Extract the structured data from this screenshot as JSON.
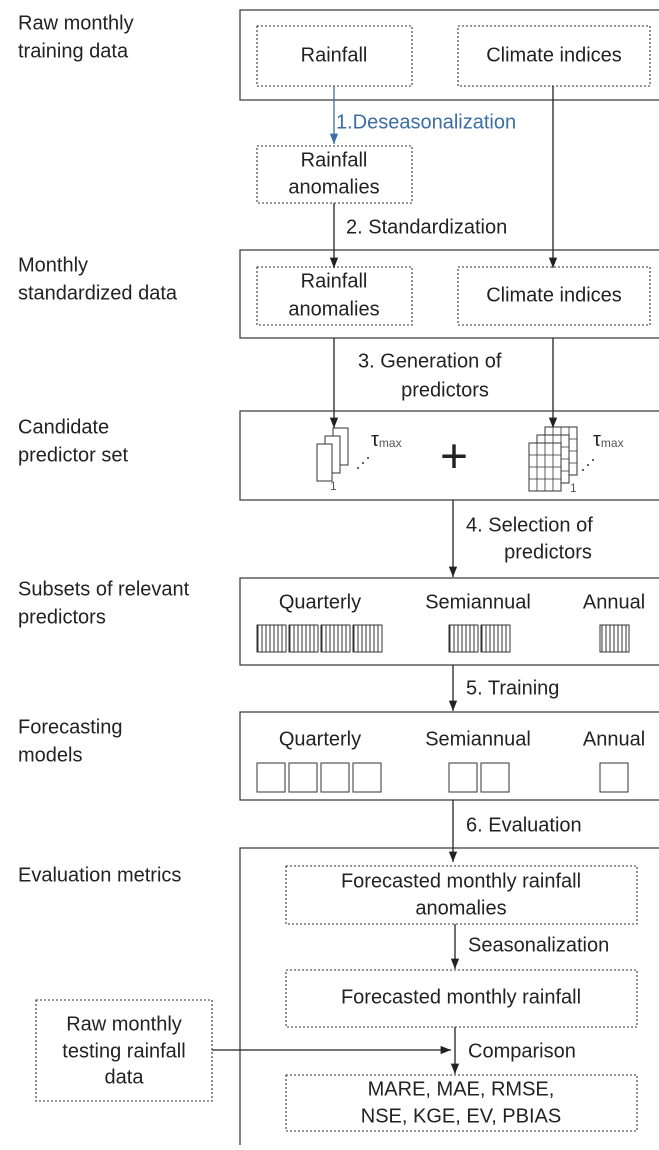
{
  "sections": [
    {
      "label": [
        "Raw monthly",
        "training data"
      ],
      "boxes": [
        [
          "Rainfall"
        ],
        [
          "Climate indices"
        ]
      ]
    },
    {
      "label": [
        "Monthly",
        "standardized data"
      ],
      "boxes": [
        [
          "Rainfall",
          "anomalies"
        ],
        [
          "Climate indices"
        ]
      ]
    },
    {
      "label": [
        "Candidate",
        "predictor set"
      ],
      "tau": "τ",
      "tau_sub": "max",
      "lag_start": "1",
      "operator": "+"
    },
    {
      "label": [
        "Subsets of relevant",
        "predictors"
      ],
      "groups": [
        "Quarterly",
        "Semiannual",
        "Annual"
      ]
    },
    {
      "label": [
        "Forecasting",
        "models"
      ],
      "groups": [
        "Quarterly",
        "Semiannual",
        "Annual"
      ]
    },
    {
      "label": [
        "Evaluation metrics"
      ],
      "boxes": [
        [
          "Forecasted monthly rainfall",
          "anomalies"
        ],
        [
          "Forecasted monthly rainfall"
        ],
        [
          "MARE, MAE, RMSE,",
          "NSE, KGE, EV, PBIAS"
        ]
      ],
      "steps": [
        "Seasonalization",
        "Comparison"
      ],
      "external": [
        "Raw monthly",
        "testing rainfall",
        "data"
      ]
    }
  ],
  "intermediate": [
    "Rainfall",
    "anomalies"
  ],
  "steps": [
    [
      "1.Deseasonalization"
    ],
    [
      "2. Standardization"
    ],
    [
      "3. Generation of",
      "predictors"
    ],
    [
      "4. Selection of",
      "predictors"
    ],
    [
      "5. Training"
    ],
    [
      "6. Evaluation"
    ]
  ]
}
